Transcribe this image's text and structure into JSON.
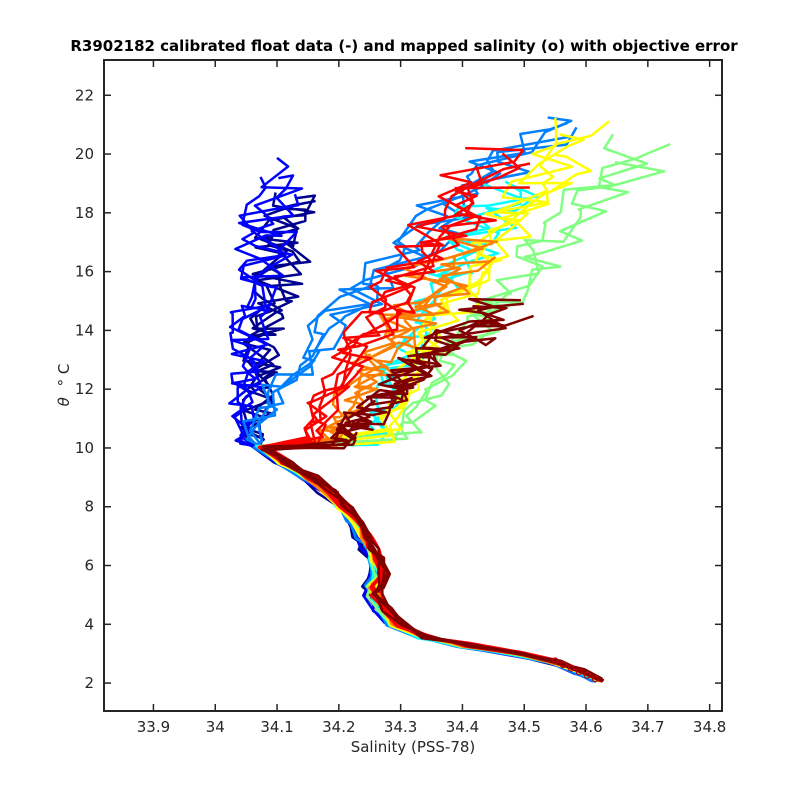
{
  "chart_data": {
    "type": "line",
    "title": "R3902182 calibrated float data (-) and mapped salinity (o) with objective error",
    "xlabel": "Salinity (PSS-78)",
    "ylabel_symbol": "θ",
    "ylabel_unit": "° C",
    "xlim": [
      33.82,
      34.82
    ],
    "ylim": [
      1.05,
      23.2
    ],
    "x_ticks": [
      33.9,
      34.0,
      34.1,
      34.2,
      34.3,
      34.4,
      34.5,
      34.6,
      34.7,
      34.8
    ],
    "x_tick_labels": [
      "33.9",
      "34",
      "34.1",
      "34.2",
      "34.3",
      "34.4",
      "34.5",
      "34.6",
      "34.7",
      "34.8"
    ],
    "y_ticks": [
      2,
      4,
      6,
      8,
      10,
      12,
      14,
      16,
      18,
      20,
      22
    ],
    "y_tick_labels": [
      "2",
      "4",
      "6",
      "8",
      "10",
      "12",
      "14",
      "16",
      "18",
      "20",
      "22"
    ],
    "grid": false,
    "colormap": [
      "#00008f",
      "#0000ff",
      "#0080ff",
      "#00ffff",
      "#80ff80",
      "#ffff00",
      "#ff8000",
      "#ff0000",
      "#800000"
    ],
    "deep_profile": {
      "theta": [
        2.1,
        2.4,
        2.7,
        3.0,
        3.3,
        3.6,
        4.0,
        4.5,
        5.0,
        5.3,
        5.7,
        6.2,
        6.6,
        7.0,
        7.5,
        8.0,
        8.5,
        9.0,
        9.5,
        10.0
      ],
      "salinity": [
        34.62,
        34.59,
        34.55,
        34.49,
        34.4,
        34.33,
        34.29,
        34.27,
        34.255,
        34.255,
        34.265,
        34.26,
        34.25,
        34.24,
        34.225,
        34.205,
        34.18,
        34.15,
        34.11,
        34.075
      ]
    },
    "profile_groups": [
      {
        "color": "#00008f",
        "top_theta": 19.3,
        "mid_salinity": 34.06,
        "top_salinity": 34.13,
        "count": 4
      },
      {
        "color": "#0000ff",
        "top_theta": 19.8,
        "mid_salinity": 34.04,
        "top_salinity": 34.1,
        "count": 4
      },
      {
        "color": "#0080ff",
        "top_theta": 21.7,
        "mid_salinity": 34.05,
        "top_salinity": 34.55,
        "count": 4
      },
      {
        "color": "#00ffff",
        "top_theta": 20.2,
        "mid_salinity": 34.25,
        "top_salinity": 34.48,
        "count": 3
      },
      {
        "color": "#80ff80",
        "top_theta": 20.6,
        "mid_salinity": 34.3,
        "top_salinity": 34.69,
        "count": 3
      },
      {
        "color": "#ffff00",
        "top_theta": 21.4,
        "mid_salinity": 34.27,
        "top_salinity": 34.6,
        "count": 4
      },
      {
        "color": "#ff8000",
        "top_theta": 17.5,
        "mid_salinity": 34.18,
        "top_salinity": 34.4,
        "count": 4
      },
      {
        "color": "#ff0000",
        "top_theta": 20.4,
        "mid_salinity": 34.15,
        "top_salinity": 34.46,
        "count": 5
      },
      {
        "color": "#800000",
        "top_theta": 15.2,
        "mid_salinity": 34.2,
        "top_salinity": 34.46,
        "count": 5
      }
    ]
  }
}
